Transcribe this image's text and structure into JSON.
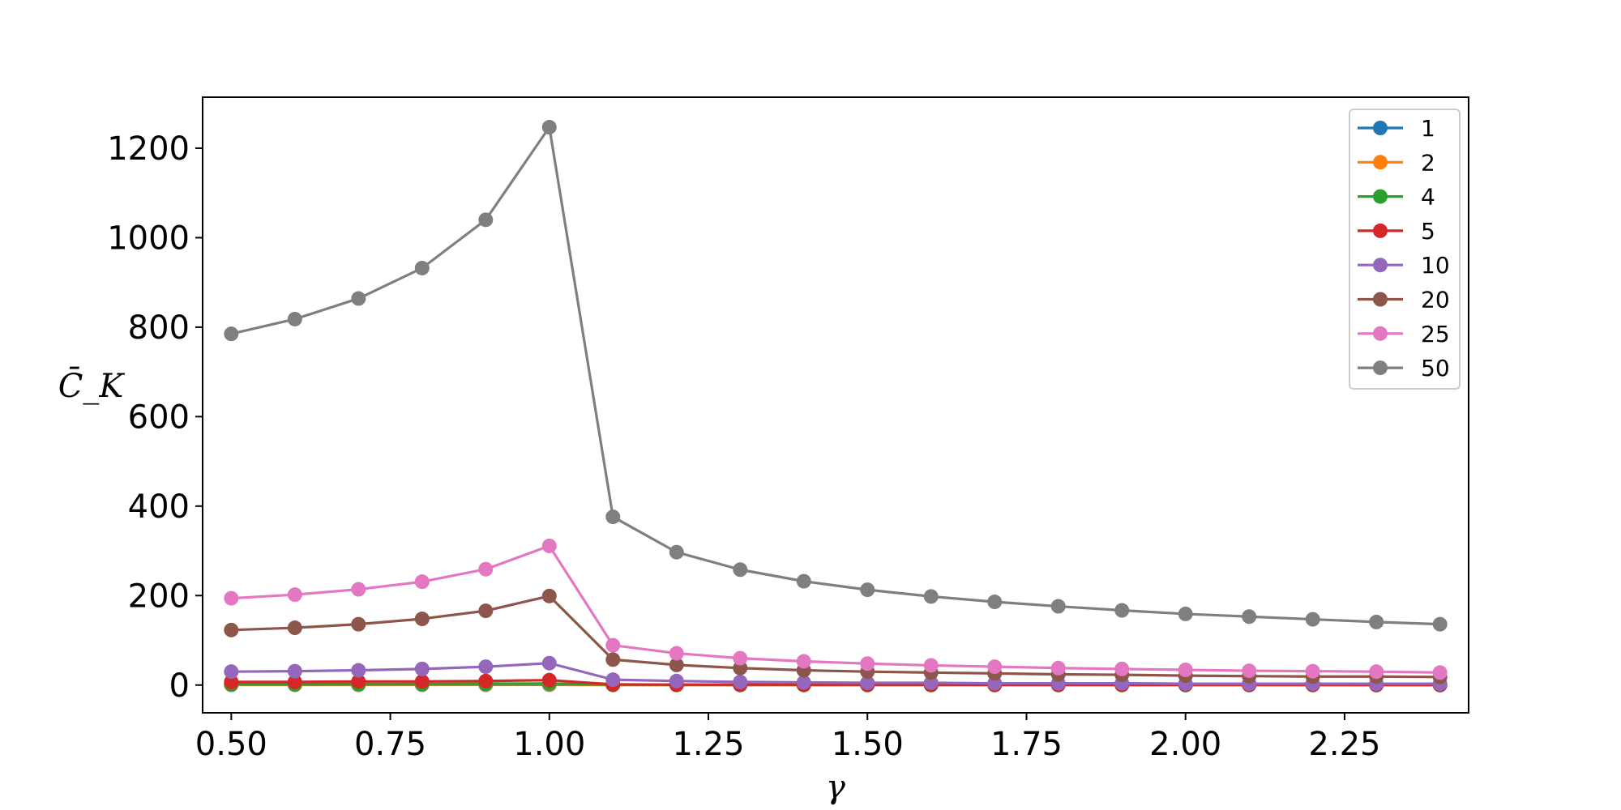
{
  "chart_data": {
    "type": "line",
    "title": "",
    "xlabel": "γ",
    "ylabel": "C̄_K",
    "xlim": [
      0.455,
      2.445
    ],
    "ylim": [
      -62,
      1314
    ],
    "xticks": [
      "0.50",
      "0.75",
      "1.00",
      "1.25",
      "1.50",
      "1.75",
      "2.00",
      "2.25"
    ],
    "yticks": [
      "0",
      "200",
      "400",
      "600",
      "800",
      "1000",
      "1200"
    ],
    "legend_position": "top-right",
    "grid": false,
    "x": [
      0.5,
      0.6,
      0.7,
      0.8,
      0.9,
      1.0,
      1.1,
      1.2,
      1.3,
      1.4,
      1.5,
      1.6,
      1.7,
      1.8,
      1.9,
      2.0,
      2.1,
      2.2,
      2.3,
      2.4
    ],
    "series": [
      {
        "name": "1",
        "color": "#1f77b4",
        "values": [
          0.5,
          0.5,
          0.5,
          0.6,
          0.6,
          0.7,
          0.2,
          0.1,
          0.1,
          0.1,
          0.1,
          0.1,
          0.1,
          0.1,
          0.1,
          0.1,
          0.1,
          0.1,
          0.1,
          0.1
        ]
      },
      {
        "name": "2",
        "color": "#ff7f0e",
        "values": [
          1,
          1,
          1,
          1.2,
          1.3,
          1.5,
          0.4,
          0.3,
          0.3,
          0.2,
          0.2,
          0.2,
          0.2,
          0.2,
          0.2,
          0.2,
          0.2,
          0.2,
          0.2,
          0.2
        ]
      },
      {
        "name": "4",
        "color": "#2ca02c",
        "values": [
          2,
          2,
          2.3,
          2.5,
          3,
          3.5,
          0.8,
          0.6,
          0.5,
          0.5,
          0.4,
          0.4,
          0.4,
          0.3,
          0.3,
          0.3,
          0.3,
          0.3,
          0.3,
          0.3
        ]
      },
      {
        "name": "5",
        "color": "#d62728",
        "values": [
          7,
          7,
          8,
          8,
          9,
          11,
          1.5,
          1,
          1,
          1,
          0.8,
          0.8,
          0.7,
          0.7,
          0.7,
          0.6,
          0.6,
          0.6,
          0.5,
          0.5
        ]
      },
      {
        "name": "10",
        "color": "#9467bd",
        "values": [
          30,
          31,
          33,
          36,
          41,
          49,
          12,
          9,
          7,
          6,
          5,
          5,
          4,
          4,
          4,
          3,
          3,
          3,
          3,
          3
        ]
      },
      {
        "name": "20",
        "color": "#8c564b",
        "values": [
          123,
          128,
          136,
          148,
          166,
          199,
          57,
          45,
          38,
          33,
          30,
          28,
          26,
          24,
          23,
          21,
          20,
          19,
          19,
          18
        ]
      },
      {
        "name": "25",
        "color": "#e377c2",
        "values": [
          194,
          202,
          214,
          231,
          259,
          311,
          89,
          71,
          60,
          53,
          48,
          44,
          41,
          38,
          36,
          34,
          32,
          31,
          30,
          28
        ]
      },
      {
        "name": "50",
        "color": "#7f7f7f",
        "values": [
          785,
          818,
          864,
          932,
          1040,
          1247,
          376,
          297,
          258,
          232,
          213,
          198,
          186,
          176,
          167,
          159,
          153,
          147,
          141,
          136
        ]
      }
    ]
  }
}
